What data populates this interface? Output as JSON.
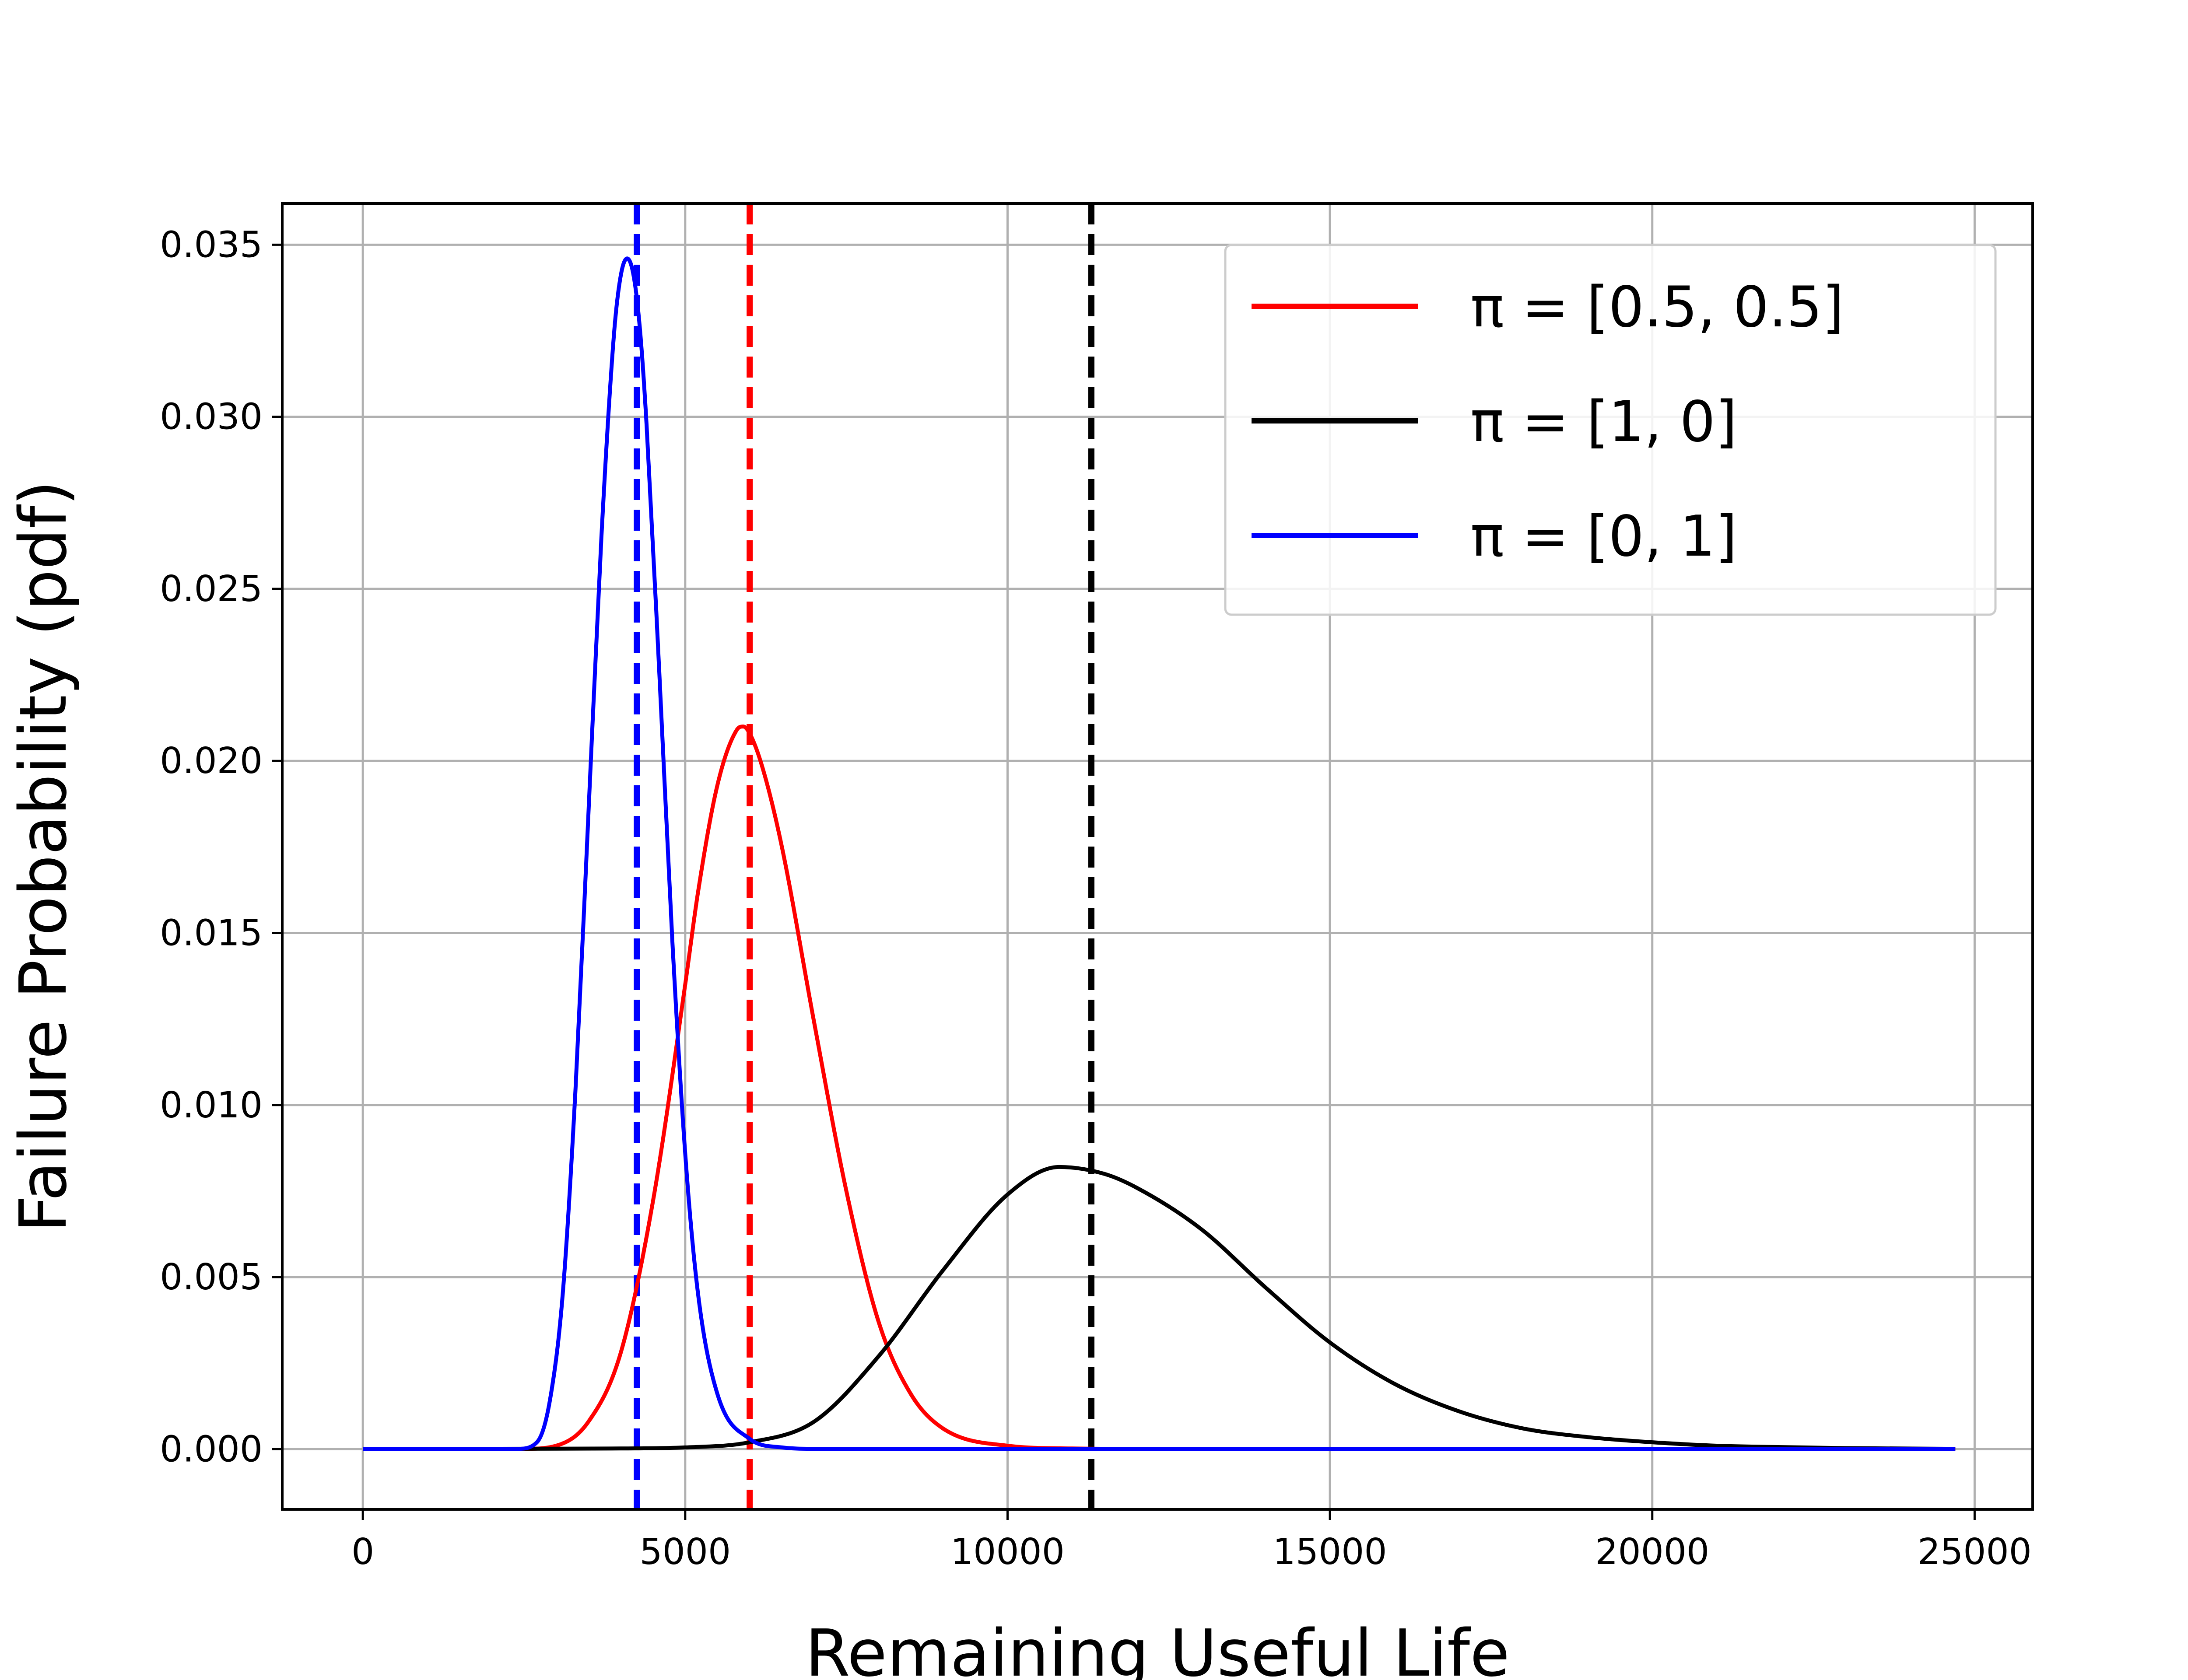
{
  "chart_data": {
    "type": "line",
    "title": "",
    "xlabel": "Remaining Useful Life",
    "ylabel": "Failure Probability (pdf)",
    "xlim": [
      -1250,
      25900
    ],
    "ylim": [
      -0.00175,
      0.0362
    ],
    "xticks": [
      0,
      5000,
      10000,
      15000,
      20000,
      25000
    ],
    "xtick_labels": [
      "0",
      "5000",
      "10000",
      "15000",
      "20000",
      "25000"
    ],
    "yticks": [
      0.0,
      0.005,
      0.01,
      0.015,
      0.02,
      0.025,
      0.03,
      0.035
    ],
    "ytick_labels": [
      "0.000",
      "0.005",
      "0.010",
      "0.015",
      "0.020",
      "0.025",
      "0.030",
      "0.035"
    ],
    "grid": true,
    "legend_position": "top-right",
    "series": [
      {
        "name": "π = [0.5, 0.5]",
        "legend_label": "π = [0.5, 0.5]",
        "color": "#ff0000",
        "x": [
          0,
          2500,
          3000,
          3500,
          4000,
          4500,
          5000,
          5200,
          5500,
          5800,
          5900,
          6000,
          6200,
          6500,
          7000,
          7500,
          8000,
          8500,
          9000,
          10000,
          11000,
          13000,
          16000,
          20000,
          24700
        ],
        "values": [
          0,
          1e-05,
          0.0001,
          0.0008,
          0.0028,
          0.0072,
          0.0135,
          0.0162,
          0.0193,
          0.0209,
          0.021,
          0.0208,
          0.0198,
          0.0175,
          0.0124,
          0.0075,
          0.0037,
          0.0016,
          0.0006,
          0.0001,
          2e-05,
          0,
          0,
          0,
          0
        ],
        "mean_line_x": 6000
      },
      {
        "name": "π = [1, 0]",
        "legend_label": "π = [1, 0]",
        "color": "#000000",
        "x": [
          0,
          4000,
          5000,
          6000,
          7000,
          8000,
          9000,
          10000,
          10800,
          11500,
          12000,
          13000,
          14000,
          15000,
          16000,
          17000,
          18000,
          19000,
          20000,
          21000,
          22000,
          23000,
          24700
        ],
        "values": [
          0,
          2e-05,
          5e-05,
          0.0002,
          0.0008,
          0.0027,
          0.0052,
          0.0074,
          0.0082,
          0.008,
          0.0076,
          0.0064,
          0.0047,
          0.0031,
          0.0019,
          0.0011,
          0.0006,
          0.00035,
          0.0002,
          0.0001,
          6e-05,
          3e-05,
          1e-05
        ],
        "mean_line_x": 11300
      },
      {
        "name": "π = [0, 1]",
        "legend_label": "π = [0, 1]",
        "color": "#0000ff",
        "x": [
          0,
          2400,
          2700,
          2900,
          3100,
          3300,
          3500,
          3700,
          3900,
          4000,
          4100,
          4200,
          4300,
          4400,
          4600,
          4800,
          5000,
          5200,
          5500,
          6000,
          6500,
          7000,
          10000,
          24700
        ],
        "values": [
          0,
          1e-05,
          0.0002,
          0.0014,
          0.0045,
          0.0105,
          0.0185,
          0.0265,
          0.0325,
          0.0341,
          0.0346,
          0.0341,
          0.0325,
          0.0298,
          0.0225,
          0.0148,
          0.0086,
          0.0045,
          0.0016,
          0.0003,
          5e-05,
          1e-05,
          0,
          0
        ],
        "mean_line_x": 4250
      }
    ]
  }
}
